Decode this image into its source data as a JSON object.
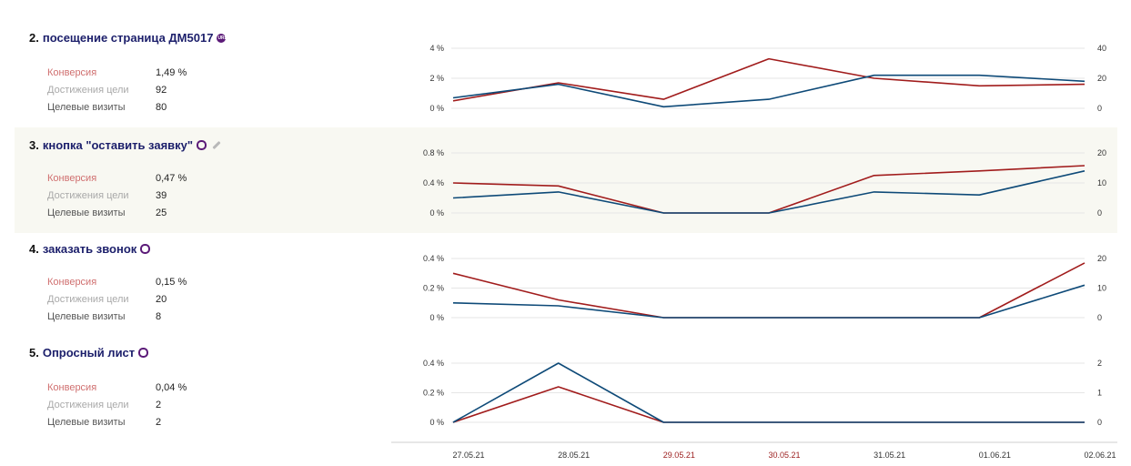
{
  "goals": [
    {
      "number": "2.",
      "name": "посещение страница ДМ5017",
      "icon": "url-badge-icon",
      "badge_text": "URL",
      "stats": {
        "conversion_label": "Конверсия",
        "conversion_value": "1,49 %",
        "reached_label": "Достижения цели",
        "reached_value": "92",
        "visits_label": "Целевые визиты",
        "visits_value": "80"
      }
    },
    {
      "number": "3.",
      "name": "кнопка \"оставить заявку\"",
      "icon": "click-icon",
      "stats": {
        "conversion_label": "Конверсия",
        "conversion_value": "0,47 %",
        "reached_label": "Достижения цели",
        "reached_value": "39",
        "visits_label": "Целевые визиты",
        "visits_value": "25"
      }
    },
    {
      "number": "4.",
      "name": "заказать звонок",
      "icon": "click-icon",
      "stats": {
        "conversion_label": "Конверсия",
        "conversion_value": "0,15 %",
        "reached_label": "Достижения цели",
        "reached_value": "20",
        "visits_label": "Целевые визиты",
        "visits_value": "8"
      }
    },
    {
      "number": "5.",
      "name": "Опросный лист",
      "icon": "click-icon",
      "stats": {
        "conversion_label": "Конверсия",
        "conversion_value": "0,04 %",
        "reached_label": "Достижения цели",
        "reached_value": "2",
        "visits_label": "Целевые визиты",
        "visits_value": "2"
      }
    }
  ],
  "colors": {
    "conversion_line": "#a11c1c",
    "visits_line": "#0e4a78",
    "grid": "#e6e6e6",
    "weekend_date": "#9b1c1c"
  },
  "chart_data": [
    {
      "type": "line",
      "x": [
        "27.05.21",
        "28.05.21",
        "29.05.21",
        "30.05.21",
        "31.05.21",
        "01.06.21",
        "02.06.21"
      ],
      "weekend_dates": [
        "29.05.21",
        "30.05.21"
      ],
      "left_ticks": [
        "4 %",
        "2 %",
        "0 %"
      ],
      "right_ticks": [
        "40",
        "20",
        "0"
      ],
      "ylim": [
        0,
        4
      ],
      "y2lim": [
        0,
        40
      ],
      "series": [
        {
          "axis": "left",
          "values": [
            0.5,
            1.7,
            0.6,
            3.3,
            2.0,
            1.5,
            1.6
          ]
        },
        {
          "axis": "right",
          "values": [
            7,
            16,
            1,
            6,
            22,
            22,
            18
          ]
        }
      ]
    },
    {
      "type": "line",
      "x": [
        "27.05.21",
        "28.05.21",
        "29.05.21",
        "30.05.21",
        "31.05.21",
        "01.06.21",
        "02.06.21"
      ],
      "weekend_dates": [
        "29.05.21",
        "30.05.21"
      ],
      "left_ticks": [
        "0.8 %",
        "0.4 %",
        "0 %"
      ],
      "right_ticks": [
        "20",
        "10",
        "0"
      ],
      "ylim": [
        0,
        0.8
      ],
      "y2lim": [
        0,
        20
      ],
      "series": [
        {
          "axis": "left",
          "values": [
            0.4,
            0.36,
            0.0,
            0.0,
            0.5,
            0.56,
            0.63
          ]
        },
        {
          "axis": "right",
          "values": [
            5,
            7,
            0,
            0,
            7,
            6,
            14
          ]
        }
      ]
    },
    {
      "type": "line",
      "x": [
        "27.05.21",
        "28.05.21",
        "29.05.21",
        "30.05.21",
        "31.05.21",
        "01.06.21",
        "02.06.21"
      ],
      "weekend_dates": [
        "29.05.21",
        "30.05.21"
      ],
      "left_ticks": [
        "0.4 %",
        "0.2 %",
        "0 %"
      ],
      "right_ticks": [
        "20",
        "10",
        "0"
      ],
      "ylim": [
        0,
        0.4
      ],
      "y2lim": [
        0,
        20
      ],
      "series": [
        {
          "axis": "left",
          "values": [
            0.3,
            0.12,
            0.0,
            0.0,
            0.0,
            0.0,
            0.37
          ]
        },
        {
          "axis": "right",
          "values": [
            5,
            4,
            0,
            0,
            0,
            0,
            11
          ]
        }
      ]
    },
    {
      "type": "line",
      "x": [
        "27.05.21",
        "28.05.21",
        "29.05.21",
        "30.05.21",
        "31.05.21",
        "01.06.21",
        "02.06.21"
      ],
      "weekend_dates": [
        "29.05.21",
        "30.05.21"
      ],
      "left_ticks": [
        "0.4 %",
        "0.2 %",
        "0 %"
      ],
      "right_ticks": [
        "2",
        "1",
        "0"
      ],
      "ylim": [
        0,
        0.4
      ],
      "y2lim": [
        0,
        2
      ],
      "series": [
        {
          "axis": "left",
          "values": [
            0.0,
            0.24,
            0.0,
            0.0,
            0.0,
            0.0,
            0.0
          ]
        },
        {
          "axis": "right",
          "values": [
            0,
            2,
            0,
            0,
            0,
            0,
            0
          ]
        }
      ]
    }
  ]
}
